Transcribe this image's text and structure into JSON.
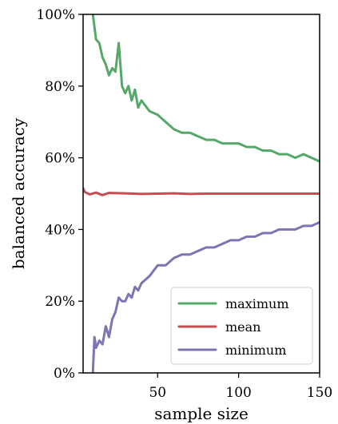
{
  "chart_data": {
    "type": "line",
    "title": "",
    "xlabel": "sample size",
    "ylabel": "balanced accuracy",
    "xlim": [
      4,
      150
    ],
    "ylim": [
      0,
      100
    ],
    "xticks": [
      50,
      100,
      150
    ],
    "yticks": [
      0,
      20,
      40,
      60,
      80,
      100
    ],
    "ytick_labels": [
      "0%",
      "20%",
      "40%",
      "60%",
      "80%",
      "100%"
    ],
    "grid": false,
    "legend_position": "lower-right",
    "series": [
      {
        "name": "maximum",
        "color": "#55a868",
        "x": [
          10,
          12,
          14,
          16,
          18,
          20,
          22,
          24,
          26,
          28,
          30,
          32,
          34,
          36,
          38,
          40,
          45,
          50,
          55,
          60,
          65,
          70,
          75,
          80,
          85,
          90,
          95,
          100,
          105,
          110,
          115,
          120,
          125,
          130,
          135,
          140,
          145,
          150
        ],
        "values": [
          100,
          93,
          92,
          88,
          86,
          83,
          85,
          84,
          92,
          80,
          78,
          80,
          76,
          79,
          74,
          76,
          73,
          72,
          70,
          68,
          67,
          67,
          66,
          65,
          65,
          64,
          64,
          64,
          63,
          63,
          62,
          62,
          61,
          61,
          60,
          61,
          60,
          59
        ]
      },
      {
        "name": "mean",
        "color": "#c44e52",
        "x": [
          4,
          5,
          8,
          12,
          16,
          20,
          30,
          40,
          50,
          60,
          70,
          80,
          90,
          100,
          110,
          120,
          130,
          140,
          150
        ],
        "values": [
          51.5,
          50.5,
          49.8,
          50.3,
          49.6,
          50.2,
          50.1,
          49.9,
          50.0,
          50.1,
          49.9,
          50.0,
          50.0,
          50.0,
          50.0,
          50.0,
          50.0,
          50.0,
          50.0
        ]
      },
      {
        "name": "minimum",
        "color": "#8172b2",
        "x": [
          10,
          11,
          12,
          14,
          16,
          18,
          20,
          22,
          24,
          26,
          28,
          30,
          32,
          34,
          36,
          38,
          40,
          45,
          50,
          55,
          60,
          65,
          70,
          75,
          80,
          85,
          90,
          95,
          100,
          105,
          110,
          115,
          120,
          125,
          130,
          135,
          140,
          145,
          150
        ],
        "values": [
          0,
          10,
          7,
          9,
          8,
          13,
          10,
          15,
          17,
          21,
          20,
          20,
          22,
          21,
          24,
          23,
          25,
          27,
          30,
          30,
          32,
          33,
          33,
          34,
          35,
          35,
          36,
          37,
          37,
          38,
          38,
          39,
          39,
          40,
          40,
          40,
          41,
          41,
          42
        ]
      }
    ]
  }
}
